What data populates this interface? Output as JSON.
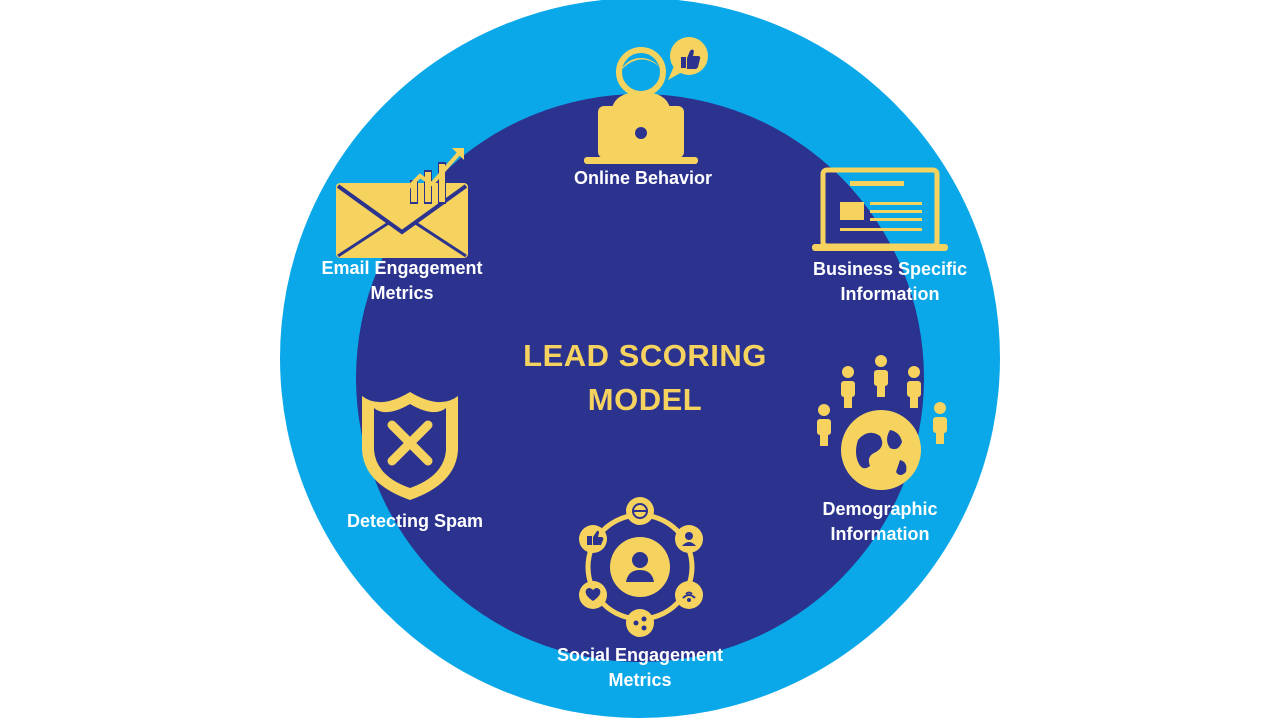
{
  "colors": {
    "outer_ring": "#0aa8e8",
    "inner_circle": "#2b338f",
    "icon_yellow": "#f6d35e",
    "label_text": "#ffffff",
    "title_text": "#f6d35e"
  },
  "center": {
    "line1": "LEAD SCORING",
    "line2": "MODEL"
  },
  "items": [
    {
      "icon": "online-behavior-icon",
      "line1": "Online Behavior",
      "line2": ""
    },
    {
      "icon": "business-info-icon",
      "line1": "Business Specific",
      "line2": "Information"
    },
    {
      "icon": "demographic-globe-icon",
      "line1": "Demographic",
      "line2": "Information"
    },
    {
      "icon": "social-network-icon",
      "line1": "Social Engagement",
      "line2": "Metrics"
    },
    {
      "icon": "spam-shield-icon",
      "line1": "Detecting Spam",
      "line2": ""
    },
    {
      "icon": "email-growth-icon",
      "line1": "Email Engagement",
      "line2": "Metrics"
    }
  ]
}
